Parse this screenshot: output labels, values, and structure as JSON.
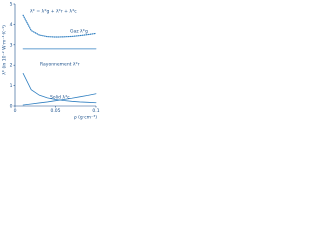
{
  "chart_data": {
    "type": "line",
    "ylabel": "λ* (in 10⁻² W·m⁻¹·K⁻¹)",
    "xlabel": "ρ (g·cm⁻³)",
    "x": [
      0.01,
      0.02,
      0.03,
      0.04,
      0.05,
      0.06,
      0.07,
      0.08,
      0.09,
      0.1
    ],
    "series": [
      {
        "name": "λ* = λ*g + λ*r + λ*c",
        "color": "#2f7fc1",
        "dashed": true,
        "values": [
          4.45,
          3.7,
          3.48,
          3.4,
          3.38,
          3.39,
          3.41,
          3.45,
          3.5,
          3.56
        ]
      },
      {
        "name": "Gaz λ*g",
        "color": "#2f7fc1",
        "dashed": false,
        "values": [
          2.8,
          2.8,
          2.8,
          2.8,
          2.8,
          2.8,
          2.8,
          2.8,
          2.8,
          2.8
        ]
      },
      {
        "name": "Rayonnement λ*r",
        "color": "#2f7fc1",
        "dashed": false,
        "values": [
          1.6,
          0.8,
          0.53,
          0.4,
          0.32,
          0.27,
          0.23,
          0.2,
          0.18,
          0.16
        ]
      },
      {
        "name": "Solid λ*c",
        "color": "#2f7fc1",
        "dashed": false,
        "values": [
          0.05,
          0.1,
          0.15,
          0.2,
          0.26,
          0.32,
          0.38,
          0.45,
          0.52,
          0.6
        ]
      }
    ],
    "xlim": [
      0,
      0.1
    ],
    "xticks": [
      0,
      0.05,
      0.1
    ],
    "ylim": [
      0,
      5
    ],
    "yticks": [
      0,
      1,
      2,
      3,
      4,
      5
    ]
  }
}
